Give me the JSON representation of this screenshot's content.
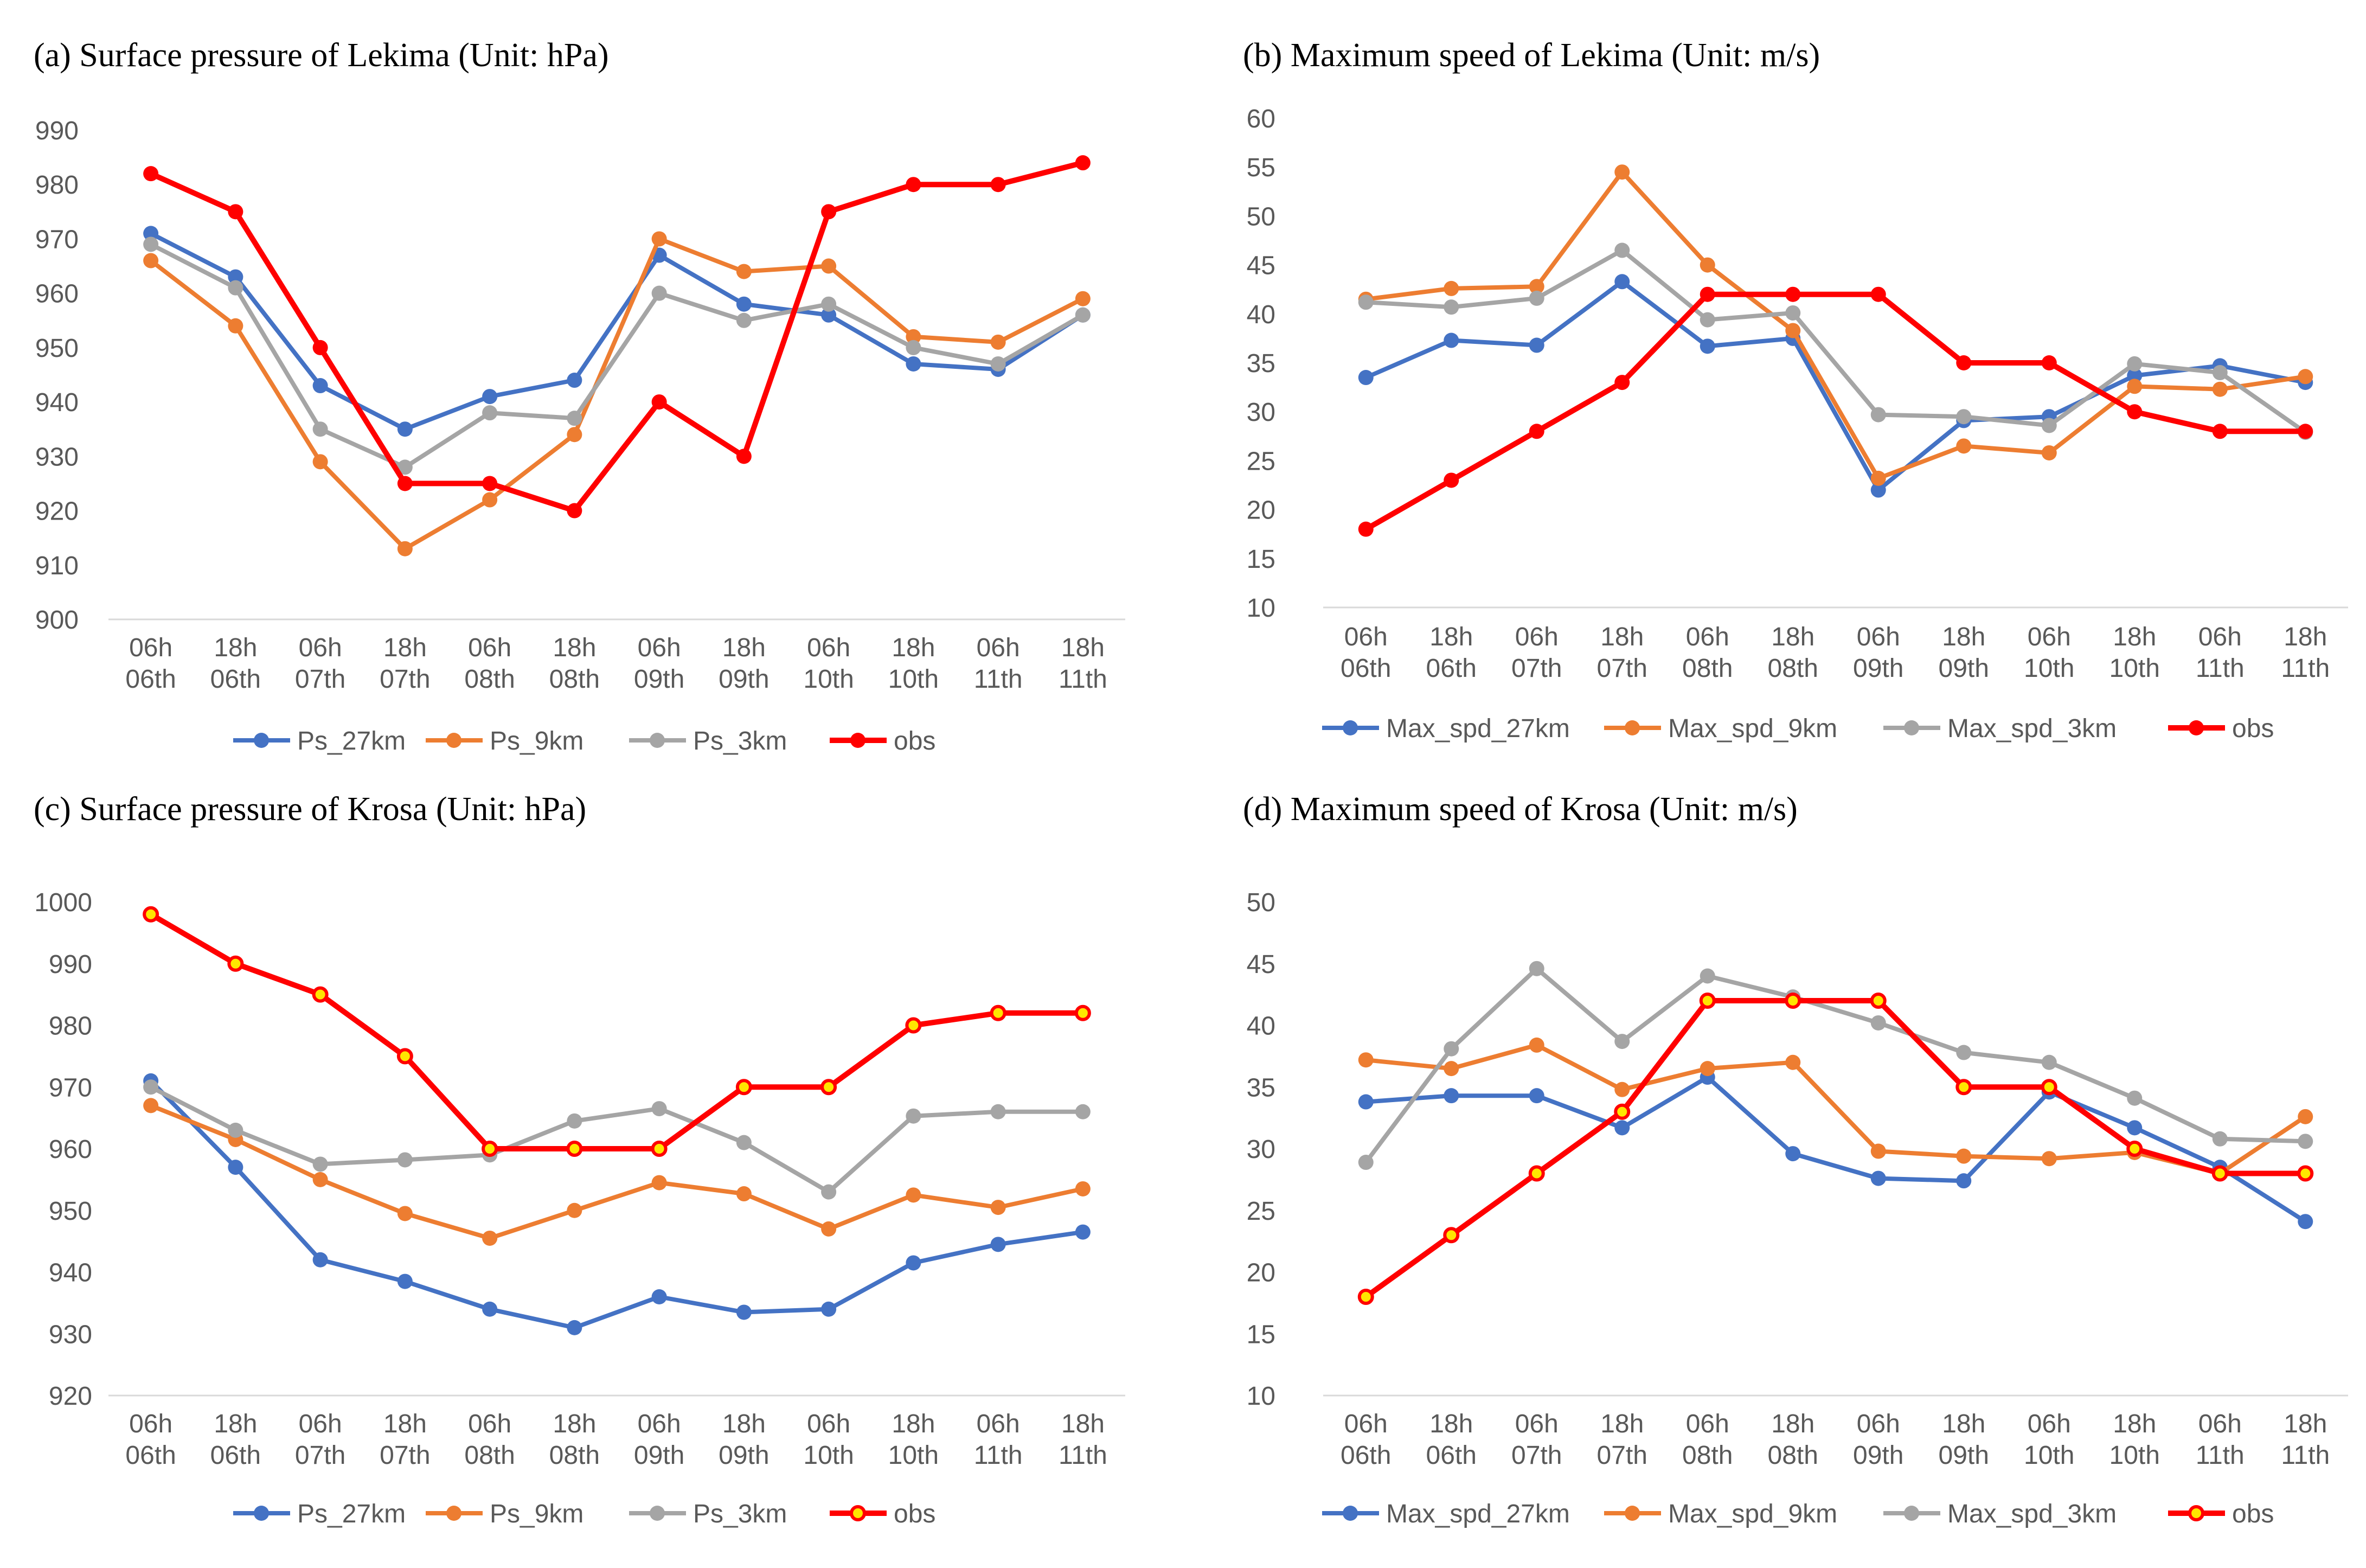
{
  "colors": {
    "c27": "#4472C4",
    "c9": "#ED7D31",
    "c3": "#A5A5A5",
    "obs": "#FF0000",
    "obs_marker_fill_cd": "#FFE600",
    "axis": "#D9D9D9",
    "tick_text": "#595959"
  },
  "chart_data": [
    {
      "id": "a",
      "type": "line",
      "title": "(a) Surface pressure of Lekima (Unit: hPa)",
      "categories": [
        [
          "06h",
          "06th"
        ],
        [
          "18h",
          "06th"
        ],
        [
          "06h",
          "07th"
        ],
        [
          "18h",
          "07th"
        ],
        [
          "06h",
          "08th"
        ],
        [
          "18h",
          "08th"
        ],
        [
          "06h",
          "09th"
        ],
        [
          "18h",
          "09th"
        ],
        [
          "06h",
          "10th"
        ],
        [
          "18h",
          "10th"
        ],
        [
          "06h",
          "11th"
        ],
        [
          "18h",
          "11th"
        ]
      ],
      "ylim": [
        900,
        990
      ],
      "yticks": [
        900,
        910,
        920,
        930,
        940,
        950,
        960,
        970,
        980,
        990
      ],
      "obs_marker": "plain",
      "series": [
        {
          "name": "Ps_27km",
          "color": "#4472C4",
          "values": [
            971,
            963,
            943,
            935,
            941,
            944,
            967,
            958,
            956,
            947,
            946,
            956
          ]
        },
        {
          "name": "Ps_9km",
          "color": "#ED7D31",
          "values": [
            966,
            954,
            929,
            913,
            922,
            934,
            970,
            964,
            965,
            952,
            951,
            959
          ]
        },
        {
          "name": "Ps_3km",
          "color": "#A5A5A5",
          "values": [
            969,
            961,
            935,
            928,
            938,
            937,
            960,
            955,
            958,
            950,
            947,
            956
          ]
        },
        {
          "name": "obs",
          "color": "#FF0000",
          "values": [
            982,
            975,
            950,
            925,
            925,
            920,
            940,
            930,
            975,
            980,
            980,
            984
          ]
        }
      ]
    },
    {
      "id": "b",
      "type": "line",
      "title": "(b) Maximum speed of Lekima (Unit: m/s)",
      "categories": [
        [
          "06h",
          "06th"
        ],
        [
          "18h",
          "06th"
        ],
        [
          "06h",
          "07th"
        ],
        [
          "18h",
          "07th"
        ],
        [
          "06h",
          "08th"
        ],
        [
          "18h",
          "08th"
        ],
        [
          "06h",
          "09th"
        ],
        [
          "18h",
          "09th"
        ],
        [
          "06h",
          "10th"
        ],
        [
          "18h",
          "10th"
        ],
        [
          "06h",
          "11th"
        ],
        [
          "18h",
          "11th"
        ]
      ],
      "ylim": [
        10,
        60
      ],
      "yticks": [
        10,
        15,
        20,
        25,
        30,
        35,
        40,
        45,
        50,
        55,
        60
      ],
      "obs_marker": "plain",
      "series": [
        {
          "name": "Max_spd_27km",
          "color": "#4472C4",
          "values": [
            33.5,
            37.3,
            36.8,
            43.3,
            36.7,
            37.5,
            22,
            29.1,
            29.5,
            33.7,
            34.7,
            33
          ]
        },
        {
          "name": "Max_spd_9km",
          "color": "#ED7D31",
          "values": [
            41.5,
            42.6,
            42.8,
            54.5,
            45,
            38.3,
            23.2,
            26.5,
            25.8,
            32.6,
            32.3,
            33.6
          ]
        },
        {
          "name": "Max_spd_3km",
          "color": "#A5A5A5",
          "values": [
            41.2,
            40.7,
            41.6,
            46.5,
            39.4,
            40.1,
            29.7,
            29.5,
            28.6,
            34.9,
            34,
            27.9
          ]
        },
        {
          "name": "obs",
          "color": "#FF0000",
          "values": [
            18,
            23,
            28,
            33,
            42,
            42,
            42,
            35,
            35,
            30,
            28,
            28
          ]
        }
      ]
    },
    {
      "id": "c",
      "type": "line",
      "title": "(c) Surface pressure of Krosa (Unit: hPa)",
      "categories": [
        [
          "06h",
          "06th"
        ],
        [
          "18h",
          "06th"
        ],
        [
          "06h",
          "07th"
        ],
        [
          "18h",
          "07th"
        ],
        [
          "06h",
          "08th"
        ],
        [
          "18h",
          "08th"
        ],
        [
          "06h",
          "09th"
        ],
        [
          "18h",
          "09th"
        ],
        [
          "06h",
          "10th"
        ],
        [
          "18h",
          "10th"
        ],
        [
          "06h",
          "11th"
        ],
        [
          "18h",
          "11th"
        ]
      ],
      "ylim": [
        920,
        1000
      ],
      "yticks": [
        920,
        930,
        940,
        950,
        960,
        970,
        980,
        990,
        1000
      ],
      "obs_marker": "yellow",
      "series": [
        {
          "name": "Ps_27km",
          "color": "#4472C4",
          "values": [
            971,
            957,
            942,
            938.5,
            934,
            931,
            936,
            933.5,
            934,
            941.5,
            944.5,
            946.5
          ]
        },
        {
          "name": "Ps_9km",
          "color": "#ED7D31",
          "values": [
            967,
            961.5,
            955,
            949.5,
            945.5,
            950,
            954.5,
            952.7,
            947,
            952.5,
            950.5,
            953.5
          ]
        },
        {
          "name": "Ps_3km",
          "color": "#A5A5A5",
          "values": [
            970,
            963,
            957.5,
            958.2,
            959,
            964.5,
            966.5,
            961,
            953,
            965.3,
            966,
            966
          ]
        },
        {
          "name": "obs",
          "color": "#FF0000",
          "values": [
            998,
            990,
            985,
            975,
            960,
            960,
            960,
            970,
            970,
            980,
            982,
            982
          ]
        }
      ]
    },
    {
      "id": "d",
      "type": "line",
      "title": "(d) Maximum speed of Krosa (Unit: m/s)",
      "categories": [
        [
          "06h",
          "06th"
        ],
        [
          "18h",
          "06th"
        ],
        [
          "06h",
          "07th"
        ],
        [
          "18h",
          "07th"
        ],
        [
          "06h",
          "08th"
        ],
        [
          "18h",
          "08th"
        ],
        [
          "06h",
          "09th"
        ],
        [
          "18h",
          "09th"
        ],
        [
          "06h",
          "10th"
        ],
        [
          "18h",
          "10th"
        ],
        [
          "06h",
          "11th"
        ],
        [
          "18h",
          "11th"
        ]
      ],
      "ylim": [
        10,
        50
      ],
      "yticks": [
        10,
        15,
        20,
        25,
        30,
        35,
        40,
        45,
        50
      ],
      "obs_marker": "yellow",
      "series": [
        {
          "name": "Max_spd_27km",
          "color": "#4472C4",
          "values": [
            33.8,
            34.3,
            34.3,
            31.7,
            35.8,
            29.6,
            27.6,
            27.4,
            34.6,
            31.7,
            28.5,
            24.1
          ]
        },
        {
          "name": "Max_spd_9km",
          "color": "#ED7D31",
          "values": [
            37.2,
            36.5,
            38.4,
            34.8,
            36.5,
            37,
            29.8,
            29.4,
            29.2,
            29.7,
            28,
            32.6
          ]
        },
        {
          "name": "Max_spd_3km",
          "color": "#A5A5A5",
          "values": [
            28.9,
            38.1,
            44.6,
            38.7,
            44,
            42.3,
            40.2,
            37.8,
            37,
            34.1,
            30.8,
            30.6
          ]
        },
        {
          "name": "obs",
          "color": "#FF0000",
          "values": [
            18,
            23,
            28,
            33,
            42,
            42,
            42,
            35,
            35,
            30,
            28,
            28
          ]
        }
      ]
    }
  ]
}
